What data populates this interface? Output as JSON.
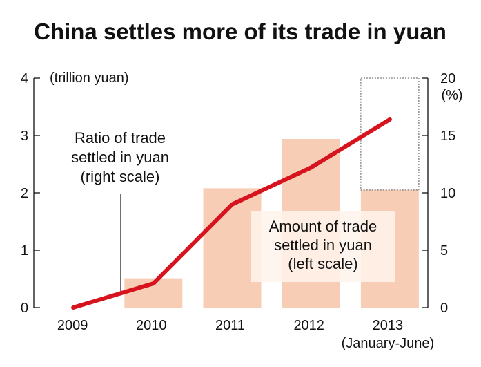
{
  "chart_data": {
    "type": "bar",
    "title": "China settles more of its trade in yuan",
    "categories": [
      "2009",
      "2010",
      "2011",
      "2012",
      "2013"
    ],
    "category_sublabels": [
      "",
      "",
      "",
      "",
      "(January-June)"
    ],
    "left_axis": {
      "unit_label": "(trillion yuan)",
      "ylim": [
        0,
        4
      ],
      "ticks": [
        "0",
        "1",
        "2",
        "3",
        "4"
      ]
    },
    "right_axis": {
      "unit_label": "(%)",
      "ylim": [
        0,
        20
      ],
      "ticks": [
        "0",
        "5",
        "10",
        "15",
        "20"
      ]
    },
    "series": [
      {
        "name": "Amount of trade settled in yuan (left scale)",
        "type": "bar",
        "axis": "left",
        "values": [
          0.0,
          0.51,
          2.08,
          2.94,
          2.05
        ],
        "color": "#f7cdb6"
      },
      {
        "name": "Ratio of trade settled in yuan (right scale)",
        "type": "line",
        "axis": "right",
        "values": [
          0.0,
          2.1,
          9.0,
          12.2,
          16.4
        ],
        "color": "#d7141e"
      }
    ],
    "projection_outline": {
      "category": "2013",
      "value": 4.0,
      "style": "dotted"
    },
    "annotations": {
      "ratio_label": [
        "Ratio of trade",
        "settled in yuan",
        "(right scale)"
      ],
      "amount_label": [
        "Amount of trade",
        "settled in yuan",
        "(left scale)"
      ]
    },
    "grid": false,
    "legend": "none"
  }
}
